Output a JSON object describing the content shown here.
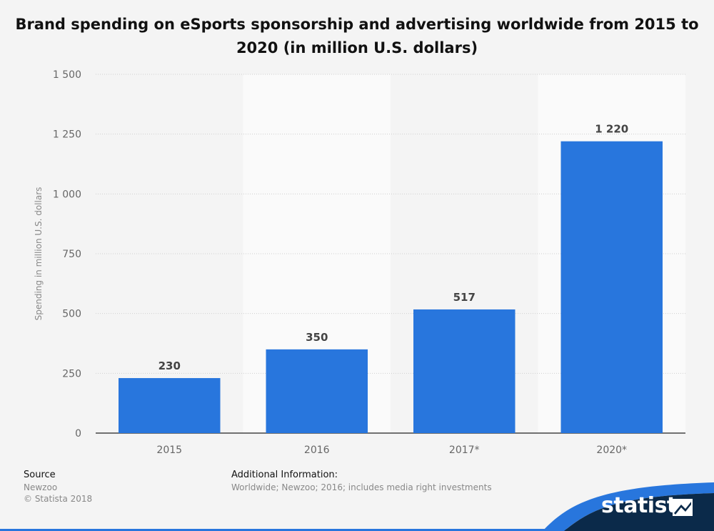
{
  "title_lines": [
    "Brand spending on eSports sponsorship and advertising worldwide from 2015 to",
    "2020 (in million U.S. dollars)"
  ],
  "chart_data": {
    "type": "bar",
    "title": "Brand spending on eSports sponsorship and advertising worldwide from 2015 to 2020 (in million U.S. dollars)",
    "categories": [
      "2015",
      "2016",
      "2017*",
      "2020*"
    ],
    "values": [
      230,
      350,
      517,
      1220
    ],
    "value_labels": [
      "230",
      "350",
      "517",
      "1 220"
    ],
    "ylabel": "Spending in million U.S. dollars",
    "xlabel": "",
    "ylim": [
      0,
      1500
    ],
    "yticks": [
      0,
      250,
      500,
      750,
      1000,
      1250,
      1500
    ],
    "ytick_labels": [
      "0",
      "250",
      "500",
      "750",
      "1 000",
      "1 250",
      "1 500"
    ],
    "grid": true,
    "bar_color": "#2876dd",
    "legend": "none"
  },
  "footer": {
    "source_label": "Source",
    "source_value": "Newzoo",
    "copyright": "© Statista 2018",
    "info_label": "Additional Information:",
    "info_value": "Worldwide; Newzoo; 2016; includes media right investments"
  },
  "brand": {
    "logo_text": "statista",
    "colors": {
      "navy": "#0b2a4a",
      "blue": "#2876dd"
    }
  }
}
